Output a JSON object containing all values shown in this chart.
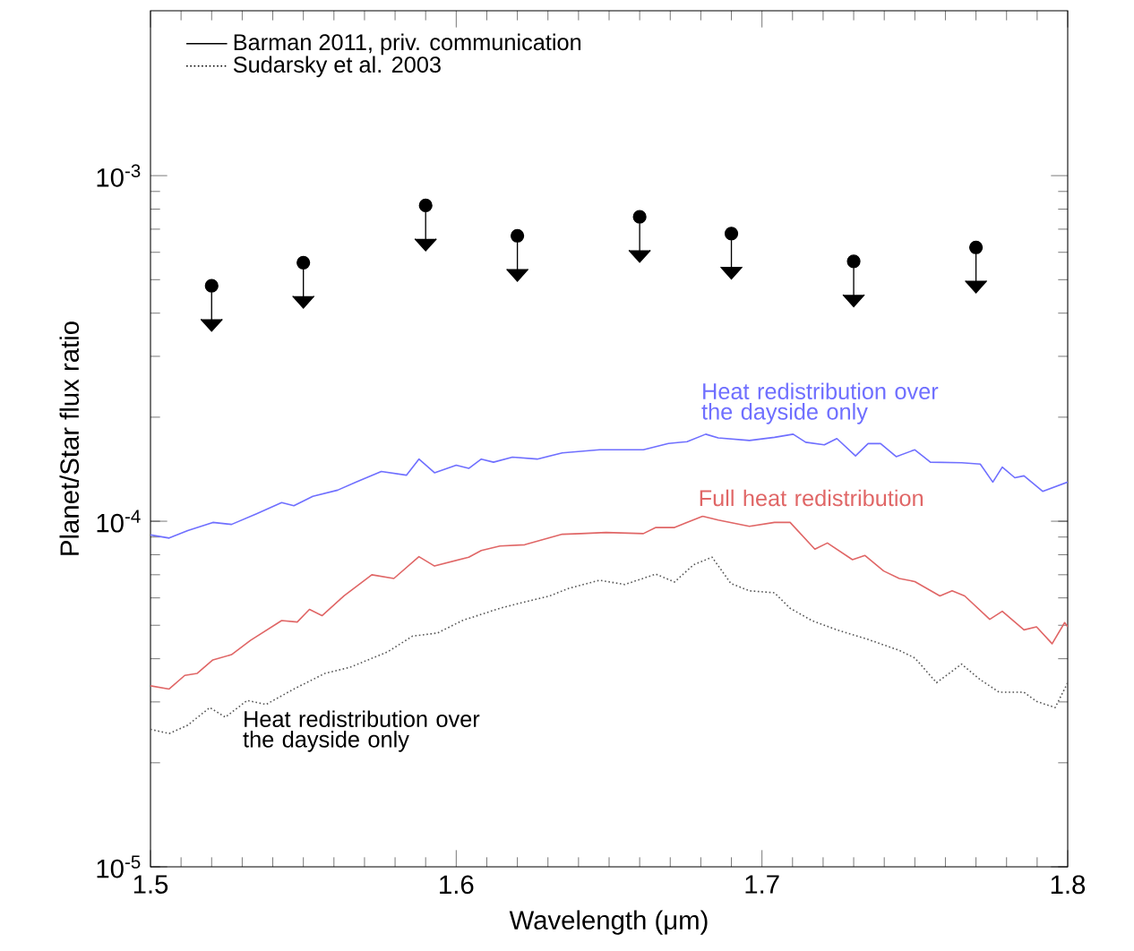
{
  "chart_data": {
    "type": "line",
    "xlabel": "Wavelength (μm)",
    "ylabel": "Planet/Star flux ratio",
    "log": "y",
    "xlim": [
      1.5,
      1.8
    ],
    "ylim": [
      1e-05,
      0.003
    ],
    "xticks": [
      1.5,
      1.6,
      1.7,
      1.8
    ],
    "yticks": [
      {
        "value": 1e-05,
        "label": "10$^{-5}$"
      },
      {
        "value": 0.0001,
        "label": "10$^{-4}$"
      },
      {
        "value": 0.001,
        "label": "10$^{-3}$"
      }
    ],
    "grid": false,
    "series": [
      {
        "color": "#6f6fff",
        "line_style": "solid",
        "x": [
          1.5,
          1.5061,
          1.5122,
          1.5204,
          1.5265,
          1.5347,
          1.5429,
          1.5469,
          1.5531,
          1.5612,
          1.5673,
          1.5755,
          1.5837,
          1.5878,
          1.5929,
          1.6,
          1.6041,
          1.6082,
          1.6122,
          1.6184,
          1.6265,
          1.6347,
          1.6469,
          1.6612,
          1.6694,
          1.6755,
          1.6816,
          1.6857,
          1.6959,
          1.7041,
          1.7102,
          1.7143,
          1.7204,
          1.7245,
          1.7306,
          1.7347,
          1.7388,
          1.7439,
          1.75,
          1.7551,
          1.7653,
          1.7714,
          1.7755,
          1.7786,
          1.7827,
          1.7857,
          1.7918,
          1.8
        ],
        "values": [
          9.13e-05,
          8.94e-05,
          9.4e-05,
          9.92e-05,
          9.79e-05,
          0.0001051,
          0.0001132,
          0.0001109,
          0.000118,
          0.000123,
          0.0001298,
          0.0001393,
          0.0001359,
          0.0001513,
          0.0001381,
          0.0001452,
          0.0001422,
          0.0001513,
          0.0001482,
          0.0001532,
          0.0001513,
          0.0001577,
          0.000161,
          0.000161,
          0.0001678,
          0.0001699,
          0.0001786,
          0.0001742,
          0.0001713,
          0.0001749,
          0.0001786,
          0.0001692,
          0.0001664,
          0.0001735,
          0.0001545,
          0.0001678,
          0.0001678,
          0.0001538,
          0.000161,
          0.0001482,
          0.0001476,
          0.0001463,
          0.0001298,
          0.0001434,
          0.0001336,
          0.0001353,
          0.000122,
          0.0001298
        ]
      },
      {
        "color": "#e06666",
        "line_style": "solid",
        "x": [
          1.5,
          1.5061,
          1.5112,
          1.5153,
          1.5204,
          1.5265,
          1.5327,
          1.5429,
          1.548,
          1.552,
          1.5561,
          1.5633,
          1.5724,
          1.5796,
          1.5878,
          1.5929,
          1.6041,
          1.6082,
          1.6143,
          1.6224,
          1.6347,
          1.6408,
          1.649,
          1.6612,
          1.6653,
          1.6714,
          1.6806,
          1.6857,
          1.6959,
          1.7041,
          1.7092,
          1.7173,
          1.7214,
          1.7296,
          1.7337,
          1.7398,
          1.7449,
          1.75,
          1.7582,
          1.7622,
          1.7663,
          1.7745,
          1.7786,
          1.7857,
          1.7898,
          1.7949,
          1.799,
          1.8
        ],
        "values": [
          3.34e-05,
          3.27e-05,
          3.58e-05,
          3.63e-05,
          3.97e-05,
          4.11e-05,
          4.52e-05,
          5.16e-05,
          5.11e-05,
          5.56e-05,
          5.33e-05,
          6.08e-05,
          7e-05,
          6.83e-05,
          7.9e-05,
          7.42e-05,
          7.87e-05,
          8.23e-05,
          8.48e-05,
          8.55e-05,
          9.17e-05,
          9.21e-05,
          9.28e-05,
          9.21e-05,
          9.59e-05,
          9.59e-05,
          0.0001034,
          0.0001008,
          9.67e-05,
          9.92e-05,
          9.92e-05,
          8.3e-05,
          8.65e-05,
          7.74e-05,
          7.96e-05,
          7.18e-05,
          6.83e-05,
          6.69e-05,
          6.08e-05,
          6.29e-05,
          6.08e-05,
          5.2e-05,
          5.49e-05,
          4.85e-05,
          4.95e-05,
          4.42e-05,
          5.09e-05,
          4.95e-05
        ]
      },
      {
        "color": "#555555",
        "line_style": "dotted",
        "x": [
          1.5,
          1.5061,
          1.5122,
          1.5194,
          1.5245,
          1.5316,
          1.5378,
          1.5469,
          1.5571,
          1.5653,
          1.5776,
          1.5857,
          1.5939,
          1.602,
          1.6143,
          1.6224,
          1.6306,
          1.6367,
          1.6469,
          1.6551,
          1.6653,
          1.6714,
          1.6776,
          1.6837,
          1.6898,
          1.6959,
          1.7041,
          1.7092,
          1.7163,
          1.7245,
          1.7347,
          1.7449,
          1.75,
          1.7571,
          1.7653,
          1.7714,
          1.7776,
          1.7857,
          1.7898,
          1.7959,
          1.8
        ],
        "values": [
          2.5e-05,
          2.43e-05,
          2.57e-05,
          2.89e-05,
          2.71e-05,
          3.03e-05,
          2.95e-05,
          3.27e-05,
          3.63e-05,
          3.78e-05,
          4.19e-05,
          4.65e-05,
          4.75e-05,
          5.16e-05,
          5.6e-05,
          5.84e-05,
          6.08e-05,
          6.39e-05,
          6.75e-05,
          6.56e-05,
          7.03e-05,
          6.67e-05,
          7.48e-05,
          7.87e-05,
          6.61e-05,
          6.29e-05,
          6.21e-05,
          5.6e-05,
          5.16e-05,
          4.85e-05,
          4.55e-05,
          4.23e-05,
          4.02e-05,
          3.41e-05,
          3.86e-05,
          3.48e-05,
          3.2e-05,
          3.2e-05,
          3.01e-05,
          2.89e-05,
          3.41e-05
        ]
      },
      {
        "type": "scatter",
        "color": "#000000",
        "marker": "circle",
        "x": [
          1.52,
          1.55,
          1.59,
          1.62,
          1.66,
          1.69,
          1.73,
          1.77
        ],
        "values": [
          0.00048,
          0.00056,
          0.00082,
          0.00067,
          0.00076,
          0.00068,
          0.000565,
          0.00062
        ]
      }
    ],
    "annotations": [
      "Barman 2011, priv. communication",
      "Sudarsky et al. 2003",
      {
        "text": "Heat redistribution over the dayside only",
        "x": 1.6816,
        "y": 0.0001786
      },
      {
        "text": "Full heat redistribution",
        "x": 1.6806,
        "y": 0.0001034
      },
      {
        "text": "Heat redistribution over the dayside only",
        "x": 1.5316,
        "y": 3.03e-05
      }
    ]
  }
}
